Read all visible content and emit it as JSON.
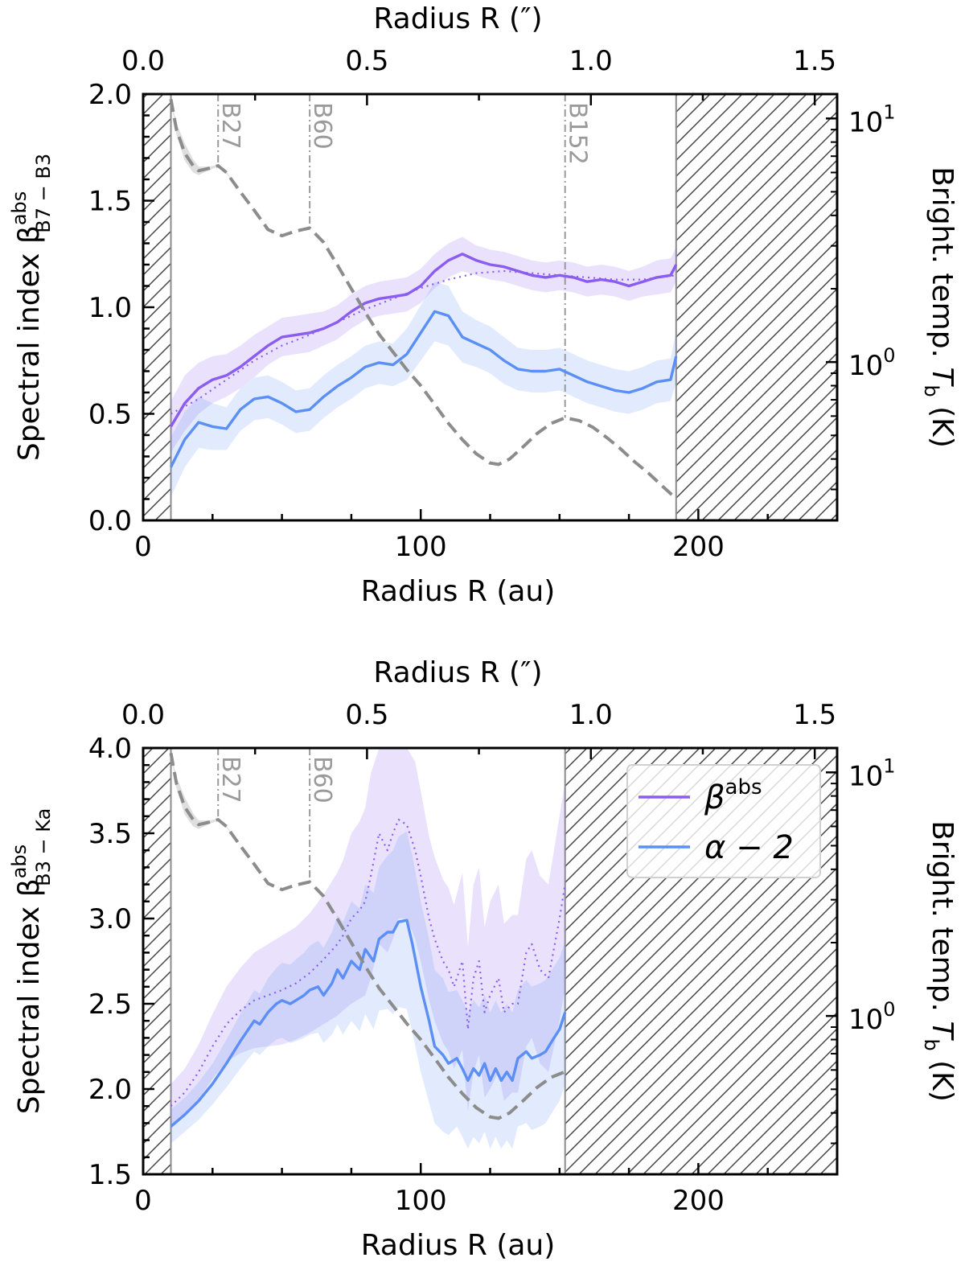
{
  "figure": {
    "colors": {
      "beta": "#8b5cf0",
      "alpha": "#5b8ff5",
      "temp": "#8c8c8c",
      "marker": "#9a9a9a"
    }
  },
  "chart_data": [
    {
      "type": "line",
      "panel": "top",
      "ylabel_main": "Spectral index β",
      "ylabel_sup": "abs",
      "ylabel_sub": "B7 − B3",
      "y2label_main": "Bright. temp. ",
      "y2label_var": "T",
      "y2label_sub": "b",
      "y2label_unit": " (K)",
      "xlabel": "Radius R (au)",
      "xlabel_top": "Radius R (″)",
      "xlim": [
        0,
        250
      ],
      "ylim": [
        0,
        2.0
      ],
      "y2lim_log10": [
        -0.65,
        1.1
      ],
      "xlim_top": [
        0,
        1.55
      ],
      "x_ticks": [
        0,
        100,
        200
      ],
      "x_ticks_top": [
        0.0,
        0.5,
        1.0,
        1.5
      ],
      "y_ticks": [
        0.0,
        0.5,
        1.0,
        1.5,
        2.0
      ],
      "y2_major_ticks": [
        1,
        10
      ],
      "y2_tick_labels": [
        "10",
        "10"
      ],
      "y2_tick_sups": [
        "0",
        "1"
      ],
      "valid_range": [
        10,
        192
      ],
      "markers": [
        {
          "label": "B27",
          "x": 27
        },
        {
          "label": "B60",
          "x": 60
        },
        {
          "label": "B152",
          "x": 152
        }
      ],
      "series": [
        {
          "name": "β^abs",
          "style": "solid",
          "color": "#8b5cf0",
          "x": [
            10,
            15,
            20,
            25,
            30,
            35,
            40,
            45,
            50,
            55,
            60,
            65,
            70,
            75,
            80,
            85,
            90,
            95,
            100,
            105,
            110,
            115,
            120,
            125,
            130,
            135,
            140,
            145,
            150,
            155,
            160,
            165,
            170,
            175,
            180,
            185,
            190,
            192
          ],
          "values": [
            0.44,
            0.55,
            0.62,
            0.66,
            0.68,
            0.72,
            0.77,
            0.82,
            0.86,
            0.87,
            0.88,
            0.9,
            0.93,
            0.98,
            1.02,
            1.04,
            1.05,
            1.06,
            1.1,
            1.17,
            1.22,
            1.25,
            1.22,
            1.2,
            1.19,
            1.17,
            1.15,
            1.14,
            1.15,
            1.14,
            1.12,
            1.13,
            1.12,
            1.1,
            1.12,
            1.14,
            1.15,
            1.2
          ],
          "band": [
            0.12,
            0.13,
            0.12,
            0.11,
            0.1,
            0.1,
            0.1,
            0.09,
            0.09,
            0.09,
            0.09,
            0.08,
            0.08,
            0.08,
            0.08,
            0.08,
            0.08,
            0.08,
            0.08,
            0.08,
            0.08,
            0.08,
            0.07,
            0.07,
            0.07,
            0.07,
            0.07,
            0.07,
            0.07,
            0.07,
            0.07,
            0.07,
            0.07,
            0.07,
            0.07,
            0.08,
            0.08,
            0.08
          ]
        },
        {
          "name": "β^abs (dotted)",
          "style": "dotted",
          "color": "#8b5cf0",
          "x": [
            10,
            20,
            30,
            40,
            50,
            60,
            70,
            80,
            90,
            100,
            110,
            120,
            130,
            140,
            150,
            160,
            170,
            180,
            192
          ],
          "values": [
            0.5,
            0.57,
            0.66,
            0.75,
            0.82,
            0.87,
            0.93,
            0.99,
            1.04,
            1.09,
            1.13,
            1.16,
            1.17,
            1.16,
            1.15,
            1.14,
            1.13,
            1.13,
            1.15
          ]
        },
        {
          "name": "α − 2",
          "style": "solid",
          "color": "#5b8ff5",
          "x": [
            10,
            15,
            20,
            25,
            30,
            35,
            40,
            45,
            50,
            55,
            60,
            65,
            70,
            75,
            80,
            85,
            90,
            95,
            100,
            105,
            110,
            115,
            120,
            125,
            130,
            135,
            140,
            145,
            150,
            155,
            160,
            165,
            170,
            175,
            180,
            185,
            190,
            192
          ],
          "values": [
            0.25,
            0.38,
            0.46,
            0.44,
            0.43,
            0.52,
            0.57,
            0.58,
            0.55,
            0.51,
            0.52,
            0.58,
            0.63,
            0.67,
            0.72,
            0.74,
            0.73,
            0.78,
            0.88,
            0.98,
            0.96,
            0.86,
            0.83,
            0.8,
            0.75,
            0.71,
            0.7,
            0.7,
            0.71,
            0.68,
            0.65,
            0.63,
            0.61,
            0.6,
            0.62,
            0.65,
            0.66,
            0.77
          ],
          "band": [
            0.14,
            0.13,
            0.12,
            0.11,
            0.1,
            0.1,
            0.1,
            0.1,
            0.1,
            0.1,
            0.1,
            0.1,
            0.1,
            0.1,
            0.1,
            0.1,
            0.1,
            0.12,
            0.13,
            0.14,
            0.14,
            0.12,
            0.11,
            0.11,
            0.11,
            0.1,
            0.1,
            0.1,
            0.1,
            0.1,
            0.1,
            0.1,
            0.1,
            0.1,
            0.1,
            0.1,
            0.1,
            0.12
          ]
        },
        {
          "name": "Bright. temp. T_b",
          "style": "dashed",
          "color": "#8c8c8c",
          "axis": "right-log",
          "x": [
            10,
            12,
            15,
            18,
            20,
            24,
            27,
            30,
            35,
            40,
            45,
            50,
            55,
            60,
            65,
            70,
            75,
            80,
            85,
            90,
            95,
            100,
            105,
            110,
            115,
            120,
            125,
            128,
            132,
            137,
            142,
            147,
            152,
            157,
            162,
            167,
            172,
            177,
            182,
            187,
            192
          ],
          "values": [
            12.0,
            9.0,
            7.2,
            6.4,
            6.1,
            6.25,
            6.4,
            6.0,
            5.0,
            4.2,
            3.5,
            3.3,
            3.45,
            3.55,
            3.1,
            2.5,
            2.0,
            1.6,
            1.3,
            1.1,
            0.93,
            0.8,
            0.67,
            0.56,
            0.48,
            0.42,
            0.385,
            0.38,
            0.4,
            0.45,
            0.51,
            0.56,
            0.59,
            0.575,
            0.54,
            0.49,
            0.44,
            0.39,
            0.35,
            0.31,
            0.275
          ],
          "band_upper": [
            12.0,
            9.6,
            7.9,
            6.8,
            6.35,
            6.35,
            6.45,
            6.05,
            5.0,
            4.2,
            3.5,
            3.3,
            3.45,
            3.55,
            3.1,
            2.5,
            2.0,
            1.6,
            1.3,
            1.1,
            0.93,
            0.8,
            0.67,
            0.56,
            0.48,
            0.42,
            0.385,
            0.38,
            0.4,
            0.45,
            0.51,
            0.56,
            0.59,
            0.575,
            0.54,
            0.49,
            0.44,
            0.39,
            0.35,
            0.31,
            0.275
          ],
          "band_lower": [
            12.0,
            8.6,
            6.7,
            6.0,
            5.85,
            6.15,
            6.35,
            5.95,
            5.0,
            4.2,
            3.5,
            3.3,
            3.45,
            3.55,
            3.1,
            2.5,
            2.0,
            1.6,
            1.3,
            1.1,
            0.93,
            0.8,
            0.67,
            0.56,
            0.48,
            0.42,
            0.385,
            0.38,
            0.4,
            0.45,
            0.51,
            0.56,
            0.59,
            0.575,
            0.54,
            0.49,
            0.44,
            0.39,
            0.35,
            0.31,
            0.275
          ]
        }
      ]
    },
    {
      "type": "line",
      "panel": "bottom",
      "ylabel_main": "Spectral index β",
      "ylabel_sup": "abs",
      "ylabel_sub": "B3 − Ka",
      "y2label_main": "Bright. temp. ",
      "y2label_var": "T",
      "y2label_sub": "b",
      "y2label_unit": " (K)",
      "xlabel": "Radius R (au)",
      "xlabel_top": "Radius R (″)",
      "xlim": [
        0,
        250
      ],
      "ylim": [
        1.5,
        4.0
      ],
      "y2lim_log10": [
        -0.65,
        1.1
      ],
      "xlim_top": [
        0,
        1.55
      ],
      "x_ticks": [
        0,
        100,
        200
      ],
      "x_ticks_top": [
        0.0,
        0.5,
        1.0,
        1.5
      ],
      "y_ticks": [
        1.5,
        2.0,
        2.5,
        3.0,
        3.5,
        4.0
      ],
      "y2_major_ticks": [
        1,
        10
      ],
      "y2_tick_labels": [
        "10",
        "10"
      ],
      "y2_tick_sups": [
        "0",
        "1"
      ],
      "valid_range": [
        10,
        152
      ],
      "markers": [
        {
          "label": "B27",
          "x": 27
        },
        {
          "label": "B60",
          "x": 60
        }
      ],
      "legend": {
        "position": "top-right",
        "entries": [
          {
            "base": "β",
            "sup": "abs",
            "color": "#8b5cf0"
          },
          {
            "base": "α − 2",
            "sup": "",
            "color": "#5b8ff5"
          }
        ]
      },
      "series": [
        {
          "name": "β^abs",
          "style": "dotted",
          "color": "#8b5cf0",
          "x": [
            10,
            15,
            20,
            25,
            30,
            35,
            40,
            45,
            50,
            55,
            60,
            65,
            70,
            72,
            75,
            78,
            80,
            82,
            85,
            88,
            90,
            92,
            95,
            98,
            100,
            103,
            105,
            108,
            110,
            112,
            115,
            117,
            119,
            121,
            123,
            125,
            128,
            130,
            133,
            135,
            138,
            140,
            143,
            146,
            150,
            152
          ],
          "values": [
            1.9,
            1.98,
            2.1,
            2.25,
            2.38,
            2.46,
            2.52,
            2.55,
            2.58,
            2.62,
            2.68,
            2.76,
            2.85,
            2.9,
            3.0,
            3.05,
            3.1,
            3.25,
            3.5,
            3.4,
            3.5,
            3.58,
            3.55,
            3.4,
            3.25,
            3.0,
            2.88,
            2.75,
            2.7,
            2.6,
            2.75,
            2.35,
            2.65,
            2.75,
            2.45,
            2.55,
            2.65,
            2.45,
            2.5,
            2.5,
            2.8,
            2.85,
            2.7,
            2.65,
            3.0,
            3.2
          ],
          "band": [
            0.13,
            0.14,
            0.16,
            0.19,
            0.22,
            0.25,
            0.28,
            0.3,
            0.32,
            0.33,
            0.35,
            0.38,
            0.42,
            0.44,
            0.5,
            0.52,
            0.55,
            0.6,
            0.65,
            0.6,
            0.62,
            0.58,
            0.55,
            0.52,
            0.5,
            0.48,
            0.48,
            0.48,
            0.48,
            0.48,
            0.52,
            0.48,
            0.55,
            0.55,
            0.5,
            0.55,
            0.55,
            0.52,
            0.52,
            0.52,
            0.55,
            0.55,
            0.55,
            0.55,
            0.6,
            0.6
          ]
        },
        {
          "name": "α − 2",
          "style": "solid",
          "color": "#5b8ff5",
          "x": [
            10,
            15,
            20,
            25,
            30,
            35,
            40,
            42,
            45,
            48,
            50,
            53,
            55,
            58,
            60,
            63,
            65,
            68,
            70,
            72,
            75,
            78,
            80,
            83,
            85,
            88,
            90,
            92,
            95,
            97,
            100,
            103,
            105,
            108,
            110,
            113,
            115,
            117,
            119,
            121,
            123,
            125,
            127,
            129,
            131,
            133,
            135,
            138,
            140,
            143,
            145,
            148,
            150,
            152
          ],
          "values": [
            1.78,
            1.85,
            1.93,
            2.03,
            2.15,
            2.28,
            2.4,
            2.38,
            2.45,
            2.5,
            2.52,
            2.5,
            2.52,
            2.55,
            2.58,
            2.6,
            2.55,
            2.62,
            2.7,
            2.65,
            2.75,
            2.7,
            2.82,
            2.75,
            2.88,
            2.92,
            2.92,
            2.98,
            2.99,
            2.85,
            2.6,
            2.4,
            2.25,
            2.2,
            2.15,
            2.18,
            2.12,
            2.05,
            2.12,
            2.08,
            2.15,
            2.05,
            2.12,
            2.05,
            2.1,
            2.05,
            2.18,
            2.22,
            2.18,
            2.2,
            2.22,
            2.3,
            2.35,
            2.45
          ],
          "band": [
            0.1,
            0.1,
            0.11,
            0.12,
            0.14,
            0.16,
            0.18,
            0.18,
            0.2,
            0.21,
            0.22,
            0.23,
            0.24,
            0.25,
            0.26,
            0.27,
            0.28,
            0.3,
            0.32,
            0.33,
            0.35,
            0.36,
            0.38,
            0.4,
            0.42,
            0.45,
            0.48,
            0.5,
            0.52,
            0.52,
            0.5,
            0.48,
            0.45,
            0.45,
            0.42,
            0.4,
            0.4,
            0.4,
            0.4,
            0.4,
            0.4,
            0.4,
            0.4,
            0.4,
            0.4,
            0.4,
            0.4,
            0.42,
            0.42,
            0.42,
            0.42,
            0.42,
            0.42,
            0.42
          ]
        },
        {
          "name": "Bright. temp. T_b",
          "style": "dashed",
          "color": "#8c8c8c",
          "axis": "right-log",
          "x": [
            10,
            12,
            15,
            18,
            20,
            24,
            27,
            30,
            35,
            40,
            45,
            50,
            55,
            60,
            65,
            70,
            75,
            80,
            85,
            90,
            95,
            100,
            105,
            110,
            115,
            120,
            125,
            128,
            132,
            137,
            142,
            147,
            152
          ],
          "values": [
            12.0,
            9.0,
            7.2,
            6.4,
            6.1,
            6.25,
            6.4,
            6.0,
            5.0,
            4.2,
            3.5,
            3.3,
            3.45,
            3.55,
            3.1,
            2.5,
            2.0,
            1.6,
            1.3,
            1.1,
            0.93,
            0.8,
            0.67,
            0.56,
            0.48,
            0.42,
            0.385,
            0.38,
            0.4,
            0.45,
            0.51,
            0.56,
            0.59
          ],
          "band_upper": [
            12.0,
            9.6,
            7.9,
            6.8,
            6.35,
            6.35,
            6.45,
            6.05,
            5.0,
            4.2,
            3.5,
            3.3,
            3.45,
            3.55,
            3.1,
            2.5,
            2.0,
            1.6,
            1.3,
            1.1,
            0.93,
            0.8,
            0.67,
            0.56,
            0.48,
            0.42,
            0.385,
            0.38,
            0.4,
            0.45,
            0.51,
            0.56,
            0.59
          ],
          "band_lower": [
            12.0,
            8.6,
            6.7,
            6.0,
            5.85,
            6.15,
            6.35,
            5.95,
            5.0,
            4.2,
            3.5,
            3.3,
            3.45,
            3.55,
            3.1,
            2.5,
            2.0,
            1.6,
            1.3,
            1.1,
            0.93,
            0.8,
            0.67,
            0.56,
            0.48,
            0.42,
            0.385,
            0.38,
            0.4,
            0.45,
            0.51,
            0.56,
            0.59
          ]
        }
      ]
    }
  ]
}
